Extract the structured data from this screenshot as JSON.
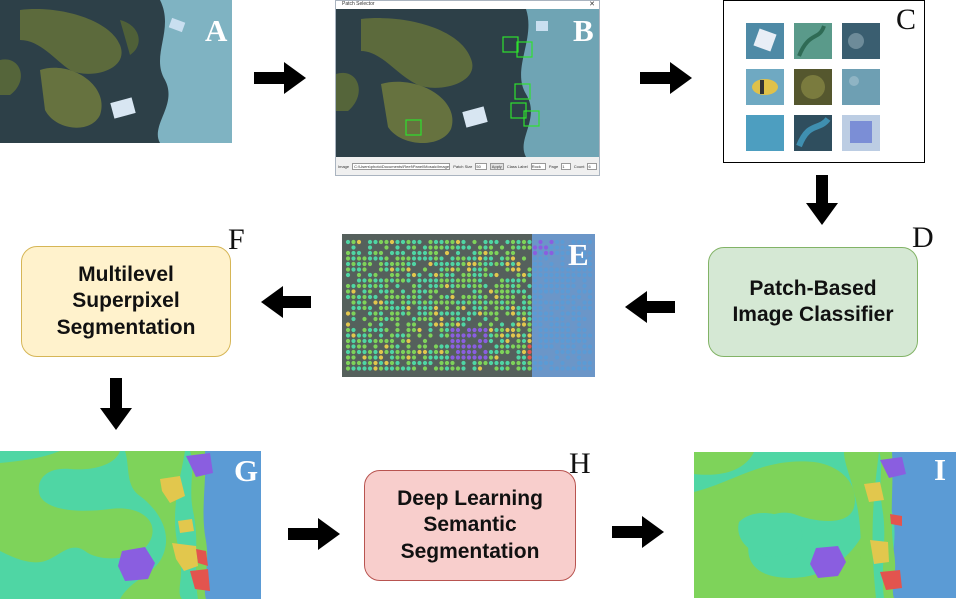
{
  "panels": {
    "a": {
      "letter": "A"
    },
    "b": {
      "letter": "B",
      "window_title": "Patch Selector",
      "status_path_label": "Image",
      "status_path": "C:\\Users\\photo\\Documents\\Reef\\Panel\\Mosaic\\Images\\reef_1.jpg",
      "field1_label": "Patch Size",
      "field1_value": "50",
      "apply_label": "Apply",
      "field2_label": "Class Label",
      "field2_value": "Rock",
      "field3_label": "Page",
      "field3_value": "1",
      "field4_label": "Count",
      "field4_value": "6"
    },
    "c": {
      "letter": "C"
    },
    "d": {
      "letter": "D",
      "label": "Patch-Based\nImage Classifier"
    },
    "e": {
      "letter": "E"
    },
    "f": {
      "letter": "F",
      "label": "Multilevel\nSuperpixel\nSegmentation"
    },
    "g": {
      "letter": "G"
    },
    "h": {
      "letter": "H",
      "label": "Deep Learning\nSemantic\nSegmentation"
    },
    "i": {
      "letter": "I"
    }
  },
  "colors": {
    "box_d_fill": "#d5e8d4",
    "box_d_border": "#82b366",
    "box_f_fill": "#fff2cc",
    "box_f_border": "#d6b656",
    "box_h_fill": "#f8cecc",
    "box_h_border": "#b85450",
    "seg_green": "#7ed35a",
    "seg_teal": "#4fd6a4",
    "seg_blue": "#5b9bd5",
    "seg_purple": "#8a5ee0",
    "seg_yellow": "#e2c74d",
    "seg_red": "#e3544e",
    "arrow": "#000000"
  }
}
